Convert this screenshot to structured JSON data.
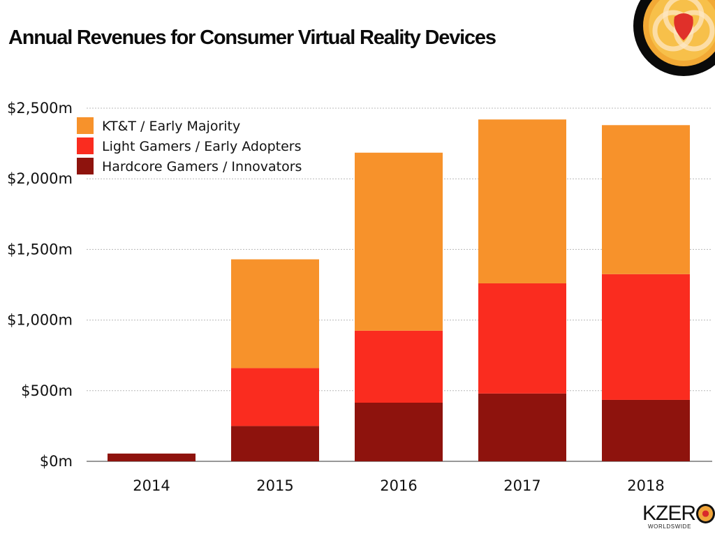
{
  "title": "Annual Revenues for Consumer Virtual Reality Devices",
  "branding": {
    "wordmark": "KZER",
    "tagline": "WORLDSWIDE",
    "logo_icon": "kzero-circle-logo-icon"
  },
  "colors": {
    "kt_t": "#f7922b",
    "light": "#fa2c1f",
    "hardcore": "#8e130d",
    "grid": "#b8b8b8",
    "axis": "#777777"
  },
  "chart_data": {
    "type": "bar",
    "stacked": true,
    "title": "Annual Revenues for Consumer Virtual Reality Devices",
    "xlabel": "",
    "ylabel": "",
    "categories": [
      "2014",
      "2015",
      "2016",
      "2017",
      "2018"
    ],
    "series": [
      {
        "name": "Hardcore Gamers / Innovators",
        "color_key": "hardcore",
        "values": [
          55,
          250,
          415,
          480,
          435
        ]
      },
      {
        "name": "Light Gamers / Early Adopters",
        "color_key": "light",
        "values": [
          0,
          410,
          510,
          780,
          890
        ]
      },
      {
        "name": "KT&T / Early Majority",
        "color_key": "kt_t",
        "values": [
          0,
          770,
          1260,
          1160,
          1055
        ]
      }
    ],
    "ylim": [
      0,
      2500
    ],
    "yticks": [
      0,
      500,
      1000,
      1500,
      2000,
      2500
    ],
    "ytick_labels": [
      "$0m",
      "$500m",
      "$1,000m",
      "$1,500m",
      "$2,000m",
      "$2,500m"
    ],
    "grid": true,
    "grid_style": "dotted",
    "legend": {
      "placement": "top-left",
      "entries": [
        "KT&T / Early Majority",
        "Light Gamers / Early Adopters",
        "Hardcore Gamers / Innovators"
      ],
      "entry_color_keys": [
        "kt_t",
        "light",
        "hardcore"
      ]
    },
    "units": "USD millions"
  }
}
